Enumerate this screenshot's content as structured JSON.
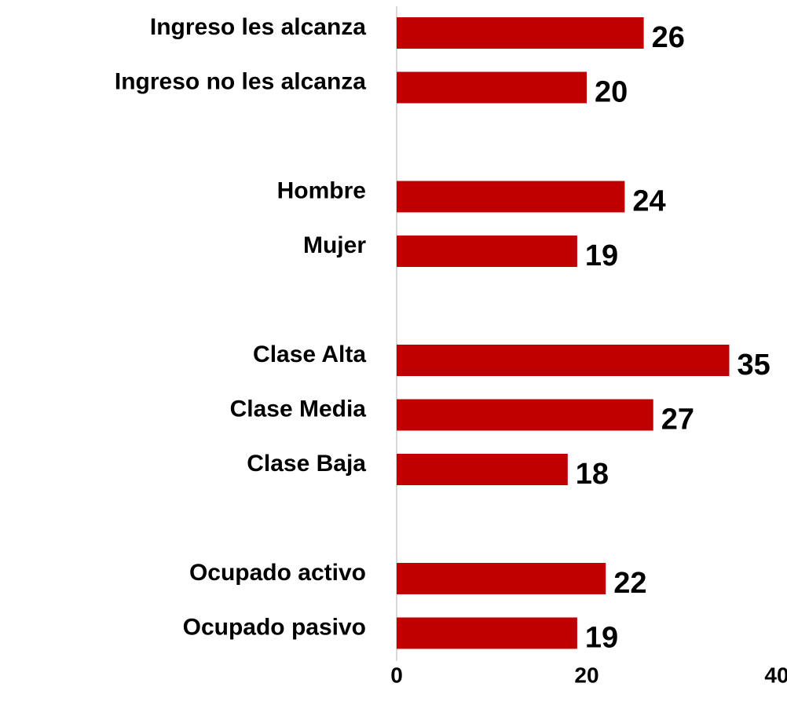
{
  "chart_data": {
    "type": "barh",
    "categories": [
      "Ingreso les alcanza",
      "Ingreso no les alcanza",
      null,
      "Hombre",
      "Mujer",
      null,
      "Clase Alta",
      "Clase Media",
      "Clase Baja",
      null,
      "Ocupado activo",
      "Ocupado pasivo"
    ],
    "values": [
      26,
      20,
      null,
      24,
      19,
      null,
      35,
      27,
      18,
      null,
      22,
      19
    ],
    "color": "#c00000",
    "xlim": [
      0,
      40
    ],
    "xticks": [
      0,
      20,
      40
    ],
    "grid": false
  }
}
